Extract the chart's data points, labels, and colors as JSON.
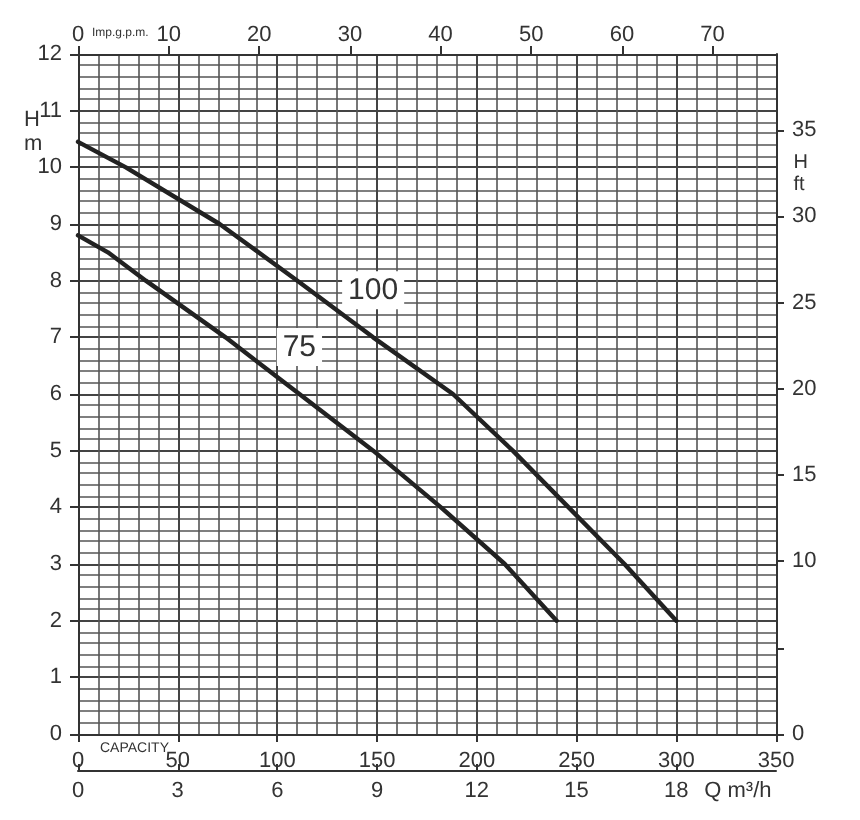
{
  "chart_data": {
    "type": "line",
    "xlabel": "CAPACITY",
    "x2label": "Imp.g.p.m.",
    "ylabel": "H m",
    "y2label": "H ft",
    "xlim": [
      0,
      350
    ],
    "xticks": [
      0,
      50,
      100,
      150,
      200,
      250,
      300,
      350
    ],
    "x2lim": [
      0,
      77
    ],
    "x2ticks": [
      0,
      10,
      20,
      30,
      40,
      50,
      60,
      70
    ],
    "ylim": [
      0,
      12
    ],
    "yticks": [
      0,
      1,
      2,
      3,
      4,
      5,
      6,
      7,
      8,
      9,
      10,
      11,
      12
    ],
    "y2lim": [
      0,
      39.4
    ],
    "y2ticks": [
      0,
      {
        "value": 5,
        "label": null
      },
      10,
      15,
      20,
      25,
      30,
      35
    ],
    "annotations": [
      "0",
      "3",
      "6",
      "9",
      "12",
      "15",
      "18",
      "Q m³/h"
    ],
    "grid": true,
    "marker": "none",
    "line_style": "solid",
    "series": [
      {
        "name": "100",
        "color": "#222222",
        "x": [
          0,
          24,
          71,
          110,
          148,
          188,
          218,
          246,
          274,
          300
        ],
        "values": [
          10.45,
          10,
          9,
          8,
          7,
          6,
          5,
          4,
          3,
          2
        ]
      },
      {
        "name": "75",
        "color": "#222222",
        "x": [
          0,
          15,
          34,
          74,
          111,
          148,
          182,
          214,
          240
        ],
        "values": [
          8.8,
          8.5,
          8,
          7,
          6,
          5,
          4,
          3,
          2
        ]
      }
    ]
  }
}
